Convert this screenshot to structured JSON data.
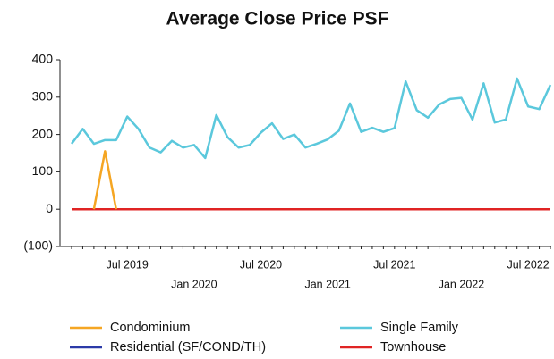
{
  "chart_data": {
    "type": "line",
    "title": "Average Close Price PSF",
    "categories": [
      null,
      null,
      null,
      null,
      null,
      "Jul 2019",
      null,
      null,
      null,
      null,
      null,
      "Jan 2020",
      null,
      null,
      null,
      null,
      null,
      "Jul 2020",
      null,
      null,
      null,
      null,
      null,
      "Jan 2021",
      null,
      null,
      null,
      null,
      null,
      "Jul 2021",
      null,
      null,
      null,
      null,
      null,
      "Jan 2022",
      null,
      null,
      null,
      null,
      null,
      "Jul 2022",
      null,
      null
    ],
    "series": [
      {
        "name": "Condominium",
        "color": "#f5a623",
        "values": [
          null,
          null,
          0,
          155,
          0,
          null,
          null,
          null,
          null,
          null,
          null,
          null,
          null,
          null,
          null,
          null,
          null,
          null,
          null,
          null,
          null,
          null,
          null,
          null,
          null,
          null,
          null,
          null,
          null,
          null,
          null,
          null,
          null,
          null,
          null,
          null,
          null,
          null,
          null,
          null,
          null,
          null,
          null,
          null
        ]
      },
      {
        "name": "Single Family",
        "color": "#5bc8dc",
        "values": [
          175,
          215,
          175,
          185,
          185,
          248,
          215,
          165,
          152,
          183,
          165,
          172,
          137,
          252,
          193,
          165,
          172,
          205,
          230,
          188,
          200,
          165,
          175,
          187,
          210,
          283,
          207,
          218,
          207,
          217,
          342,
          265,
          245,
          280,
          295,
          298,
          240,
          337,
          232,
          240,
          350,
          275,
          268,
          333
        ]
      },
      {
        "name": "Residential (SF/COND/TH)",
        "color": "#2b3aa8",
        "values": [
          0,
          0,
          0,
          0,
          0,
          0,
          0,
          0,
          0,
          0,
          0,
          0,
          0,
          0,
          0,
          0,
          0,
          0,
          0,
          0,
          0,
          0,
          0,
          0,
          0,
          0,
          0,
          0,
          0,
          0,
          0,
          0,
          0,
          0,
          0,
          0,
          0,
          0,
          0,
          0,
          0,
          0,
          0,
          0
        ]
      },
      {
        "name": "Townhouse",
        "color": "#e02424",
        "values": [
          0,
          0,
          0,
          0,
          0,
          0,
          0,
          0,
          0,
          0,
          0,
          0,
          0,
          0,
          0,
          0,
          0,
          0,
          0,
          0,
          0,
          0,
          0,
          0,
          0,
          0,
          0,
          0,
          0,
          0,
          0,
          0,
          0,
          0,
          0,
          0,
          0,
          0,
          0,
          0,
          0,
          0,
          0,
          0
        ]
      }
    ],
    "ylim": [
      -100,
      400
    ],
    "yticks": [
      {
        "value": -100,
        "label": "(100)"
      },
      0,
      100,
      200,
      300,
      400
    ]
  }
}
